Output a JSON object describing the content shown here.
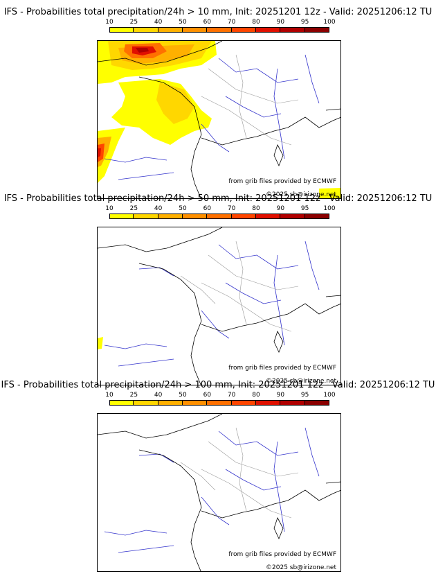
{
  "colorbar": {
    "ticks": [
      "10",
      "25",
      "40",
      "50",
      "60",
      "70",
      "80",
      "90",
      "95",
      "100"
    ],
    "colors": [
      "#ffff00",
      "#ffd700",
      "#ffb000",
      "#ff9000",
      "#ff7000",
      "#ff4500",
      "#e01000",
      "#b00000",
      "#8b0000",
      "#5a0000"
    ]
  },
  "panels": [
    {
      "title": "IFS - Probabilities total precipitation/24h > 10 mm, Init: 20251201 12z - Valid: 20251206:12 TU",
      "credit_source": "from grib files provided by ECMWF",
      "credit_copyright": "©2025 sb@irizone.net"
    },
    {
      "title": "IFS - Probabilities total precipitation/24h > 50 mm, Init: 20251201 12z - Valid: 20251206:12 TU",
      "credit_source": "from grib files provided by ECMWF",
      "credit_copyright": "©2025 sb@irizone.net"
    },
    {
      "title": "IFS - Probabilities total precipitation/24h > 100 mm, Init: 20251201 12z - Valid: 20251206:12 TU",
      "credit_source": "from grib files provided by ECMWF",
      "credit_copyright": "©2025 sb@irizone.net"
    }
  ]
}
